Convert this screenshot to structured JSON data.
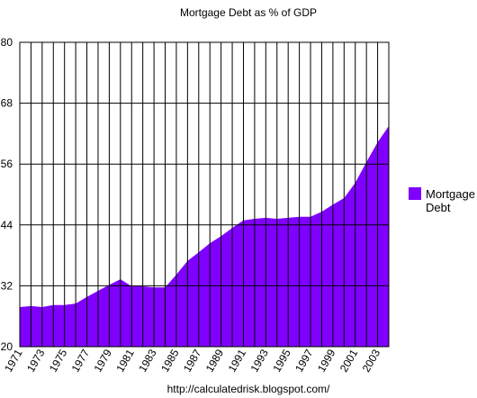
{
  "chart_data": {
    "type": "area",
    "title": "Mortgage Debt as % of GDP",
    "source": "http://calculatedrisk.blogspot.com/",
    "categories": [
      "1971",
      null,
      "1973",
      null,
      "1975",
      null,
      "1977",
      null,
      "1979",
      null,
      "1981",
      null,
      "1983",
      null,
      "1985",
      null,
      "1987",
      null,
      "1989",
      null,
      "1991",
      null,
      "1993",
      null,
      "1995",
      null,
      "1997",
      null,
      "1999",
      null,
      "2001",
      null,
      "2003",
      null
    ],
    "series": [
      {
        "name": "Mortgage Debt",
        "color": "#8000ff",
        "values": [
          27.8,
          28.0,
          27.8,
          28.2,
          28.2,
          28.5,
          29.8,
          31.0,
          32.2,
          33.3,
          31.9,
          31.9,
          31.7,
          31.7,
          34.2,
          36.9,
          38.6,
          40.4,
          41.8,
          43.4,
          44.9,
          45.2,
          45.4,
          45.2,
          45.4,
          45.6,
          45.6,
          46.6,
          48.0,
          49.3,
          52.3,
          56.4,
          60.3,
          63.5
        ]
      }
    ],
    "ylim": [
      20,
      80
    ],
    "yticks": [
      20,
      32,
      44,
      56,
      68,
      80
    ],
    "grid": true,
    "legend": "right"
  }
}
